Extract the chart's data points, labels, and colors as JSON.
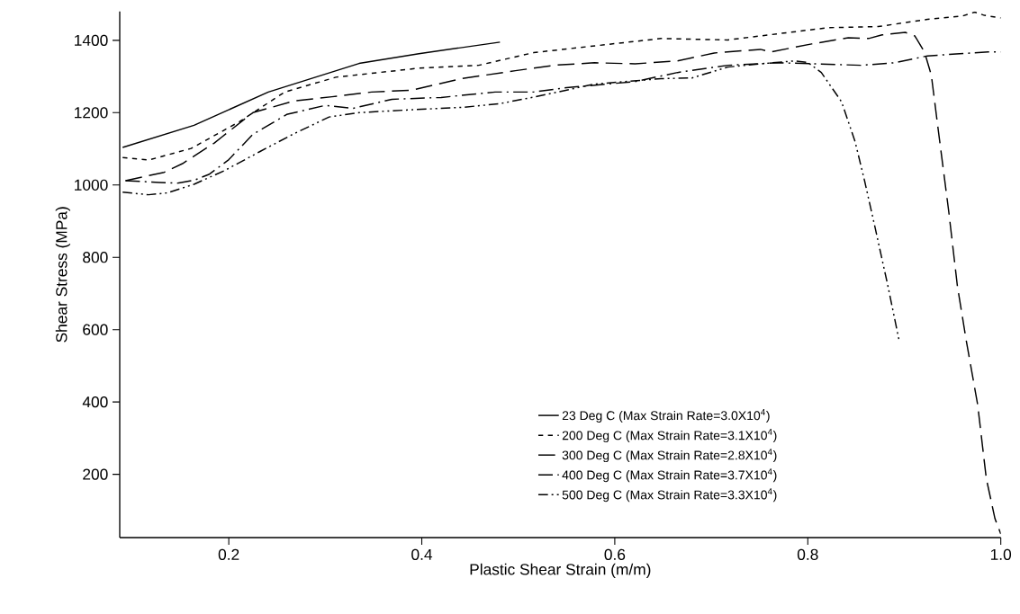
{
  "chart_data": {
    "type": "line",
    "xlabel": "Plastic Shear Strain (m/m)",
    "ylabel": "Shear Stress (MPa)",
    "xlim": [
      0.087,
      1.0
    ],
    "ylim": [
      25,
      1480
    ],
    "xticks": [
      0.2,
      0.4,
      0.6,
      0.8,
      {
        "value": 1.0,
        "label": "1.0"
      }
    ],
    "yticks": [
      200,
      400,
      600,
      800,
      1000,
      1200,
      1400
    ],
    "grid": false,
    "legend": "bottom right",
    "marker": "none",
    "series": [
      {
        "name": "23 Deg C (Max Strain Rate=3.0X10$^{4}$)",
        "color": "#000000",
        "line_style": "solid",
        "x": [
          0.09,
          0.164,
          0.241,
          0.335,
          0.397,
          0.481
        ],
        "values": [
          1104,
          1165,
          1257,
          1336,
          1363,
          1395
        ]
      },
      {
        "name": "200 Deg C (Max Strain Rate=3.1X10$^{4}$)",
        "color": "#000000",
        "line_style": "dashed",
        "x": [
          0.09,
          0.117,
          0.161,
          0.211,
          0.258,
          0.311,
          0.397,
          0.459,
          0.516,
          0.648,
          0.717,
          0.821,
          0.873,
          0.924,
          0.96,
          0.973,
          0.983,
          1.0
        ],
        "values": [
          1076,
          1069,
          1101,
          1175,
          1257,
          1298,
          1323,
          1331,
          1366,
          1405,
          1401,
          1435,
          1438,
          1458,
          1467,
          1478,
          1469,
          1462
        ]
      },
      {
        "name": "300 Deg C (Max Strain Rate=2.8X10$^{4}$)",
        "color": "#000000",
        "line_style": "long dashed",
        "x": [
          0.093,
          0.133,
          0.152,
          0.185,
          0.193,
          0.225,
          0.267,
          0.307,
          0.348,
          0.389,
          0.441,
          0.497,
          0.537,
          0.579,
          0.621,
          0.665,
          0.703,
          0.751,
          0.762,
          0.804,
          0.842,
          0.863,
          0.877,
          0.901,
          0.911,
          0.921,
          0.928,
          0.935,
          0.946,
          0.955,
          0.964,
          0.976,
          0.985,
          0.994,
          1.0
        ],
        "values": [
          1012,
          1035,
          1059,
          1116,
          1133,
          1200,
          1232,
          1244,
          1257,
          1262,
          1294,
          1316,
          1331,
          1338,
          1335,
          1343,
          1365,
          1375,
          1368,
          1390,
          1407,
          1405,
          1415,
          1422,
          1412,
          1367,
          1304,
          1156,
          928,
          721,
          573,
          393,
          188,
          77,
          35
        ]
      },
      {
        "name": "400 Deg C (Max Strain Rate=3.7X10$^{4}$)",
        "color": "#000000",
        "line_style": "dash dot",
        "x": [
          0.093,
          0.128,
          0.147,
          0.165,
          0.18,
          0.2,
          0.225,
          0.26,
          0.3,
          0.329,
          0.369,
          0.42,
          0.476,
          0.516,
          0.55,
          0.621,
          0.665,
          0.717,
          0.769,
          0.807,
          0.855,
          0.89,
          0.924,
          0.987,
          1.0
        ],
        "values": [
          1012,
          1007,
          1005,
          1014,
          1030,
          1070,
          1140,
          1195,
          1220,
          1212,
          1237,
          1242,
          1257,
          1257,
          1269,
          1286,
          1311,
          1331,
          1338,
          1335,
          1331,
          1338,
          1357,
          1368,
          1368
        ]
      },
      {
        "name": "500 Deg C (Max Strain Rate=3.3X10$^{4}$)",
        "color": "#000000",
        "line_style": "dash dot dot",
        "x": [
          0.09,
          0.117,
          0.136,
          0.164,
          0.195,
          0.232,
          0.267,
          0.304,
          0.335,
          0.382,
          0.444,
          0.481,
          0.518,
          0.579,
          0.648,
          0.68,
          0.717,
          0.751,
          0.786,
          0.8,
          0.814,
          0.835,
          0.849,
          0.859,
          0.87,
          0.883,
          0.895
        ],
        "values": [
          980,
          973,
          978,
          1002,
          1039,
          1092,
          1141,
          1188,
          1200,
          1207,
          1215,
          1225,
          1244,
          1279,
          1294,
          1296,
          1326,
          1335,
          1343,
          1339,
          1311,
          1230,
          1120,
          1010,
          879,
          721,
          565
        ]
      }
    ]
  }
}
